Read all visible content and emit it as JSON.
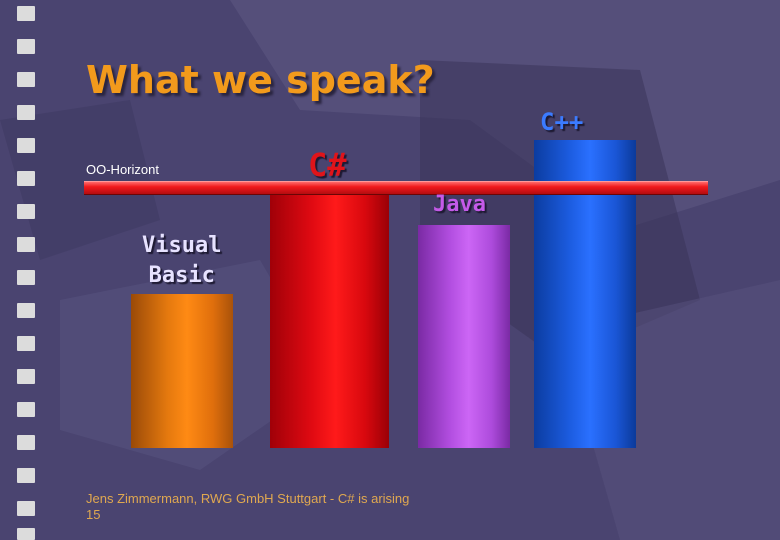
{
  "slide": {
    "title": "What we speak?",
    "horizon_label": "OO-Horizont",
    "footer_line1": "Jens Zimmermann, RWG GmbH Stuttgart - C# is arising",
    "footer_line2": "15"
  },
  "bars": [
    {
      "label_line1": "Visual",
      "label_line2": "Basic",
      "color": "#ff8a14"
    },
    {
      "label": "C#",
      "color": "#e0141a"
    },
    {
      "label": "Java",
      "color": "#c45ae8"
    },
    {
      "label": "C++",
      "color": "#2a70ff"
    }
  ],
  "colors": {
    "background": "#4b4572",
    "title": "#f29a1c",
    "horizon_line": "#f0191c",
    "footer_text": "#e0a850"
  }
}
